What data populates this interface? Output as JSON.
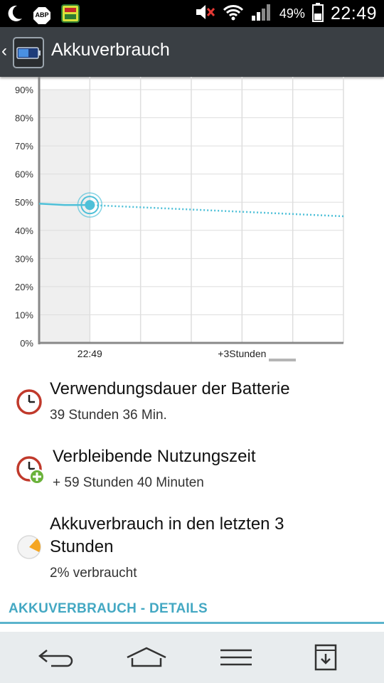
{
  "status_bar": {
    "icons": [
      "moon-icon",
      "adblock-icon",
      "app-notification-icon",
      "mute-icon",
      "wifi-icon",
      "signal-icon",
      "battery-icon"
    ],
    "adblock_label": "ABP",
    "battery_percent": "49%",
    "battery_level": 0.49,
    "time": "22:49"
  },
  "action_bar": {
    "back_icon": "chevron-left-icon",
    "app_icon": "battery-app-icon",
    "title": "Akkuverbrauch"
  },
  "chart_data": {
    "type": "line",
    "y_ticks": [
      "90%",
      "80%",
      "70%",
      "60%",
      "50%",
      "40%",
      "30%",
      "20%",
      "10%",
      "0%"
    ],
    "ylim": [
      0,
      90
    ],
    "x_tick_labels": [
      "22:49",
      "+3Stunden"
    ],
    "series": [
      {
        "style": "solid",
        "points": [
          [
            0,
            49.5
          ],
          [
            1,
            49
          ],
          [
            2,
            49
          ]
        ]
      },
      {
        "style": "dotted",
        "points": [
          [
            2,
            49
          ],
          [
            12,
            45
          ]
        ]
      }
    ],
    "current_point": {
      "x": 2,
      "y": 49
    },
    "grid": true,
    "colors": {
      "line": "#4ec0d8",
      "past_fill": "#efefef",
      "grid": "#dedede",
      "axis": "#888888"
    }
  },
  "stats": [
    {
      "icon": "clock-icon",
      "title": "Verwendungsdauer der Batterie",
      "value": "39 Stunden 36 Min."
    },
    {
      "icon": "clock-plus-icon",
      "title": "Verbleibende Nutzungszeit",
      "value": "+ 59 Stunden 40 Minuten"
    },
    {
      "icon": "pie-chart-icon",
      "title_line1": "Akkuverbrauch in den letzten 3",
      "title_line2": "Stunden",
      "value": "2% verbraucht"
    }
  ],
  "details_link": "AKKUVERBRAUCH - DETAILS",
  "nav_bar": {
    "back": "back-arrow-icon",
    "home": "home-icon",
    "menu": "menu-icon",
    "notifications": "notification-tray-icon"
  },
  "colors": {
    "accent": "#44a8c3",
    "status_bar": "#000000",
    "action_bar": "#3a3f44",
    "nav_bar": "#e8ecee",
    "clock_red": "#c0392b",
    "plus_green": "#6ab23a",
    "pie_orange": "#f5a623"
  }
}
